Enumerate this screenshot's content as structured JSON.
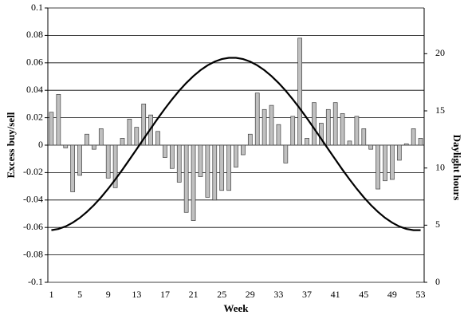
{
  "chart_data": {
    "type": "bar",
    "ylabel": "Excess buy/sell",
    "y2label": "Daylight hours",
    "xlabel": "Week",
    "categories": [
      1,
      null,
      null,
      null,
      5,
      null,
      null,
      null,
      9,
      null,
      null,
      null,
      13,
      null,
      null,
      null,
      17,
      null,
      null,
      null,
      21,
      null,
      null,
      null,
      25,
      null,
      null,
      null,
      29,
      null,
      null,
      null,
      33,
      null,
      null,
      null,
      37,
      null,
      null,
      null,
      41,
      null,
      null,
      null,
      45,
      null,
      null,
      null,
      49,
      null,
      null,
      null,
      53
    ],
    "series": [
      {
        "type": "bar",
        "color": "#c0c0c0",
        "values": [
          0.024,
          0.037,
          -0.002,
          -0.034,
          -0.022,
          0.008,
          -0.003,
          0.012,
          -0.024,
          -0.031,
          0.005,
          0.019,
          0.013,
          0.03,
          0.022,
          0.01,
          -0.009,
          -0.017,
          -0.027,
          -0.049,
          -0.055,
          -0.023,
          -0.038,
          -0.04,
          -0.033,
          -0.033,
          -0.016,
          -0.007,
          0.008,
          0.038,
          0.026,
          0.029,
          0.015,
          -0.013,
          0.021,
          0.078,
          0.005,
          0.031,
          0.016,
          0.026,
          0.031,
          0.023,
          0.003,
          0.021,
          0.012,
          -0.003,
          -0.032,
          -0.026,
          -0.025,
          -0.011,
          0.001,
          0.012,
          0.005
        ]
      },
      {
        "type": "line",
        "axis": "y2",
        "color": "#000000",
        "values": [
          4.56,
          4.67,
          4.89,
          5.22,
          5.64,
          6.16,
          6.76,
          7.44,
          8.19,
          9.0,
          9.85,
          10.74,
          11.64,
          12.56,
          13.46,
          14.35,
          15.2,
          16.01,
          16.76,
          17.44,
          18.04,
          18.56,
          18.98,
          19.31,
          19.53,
          19.64,
          19.64,
          19.53,
          19.31,
          18.98,
          18.56,
          18.04,
          17.44,
          16.76,
          16.01,
          15.2,
          14.35,
          13.46,
          12.56,
          11.64,
          10.74,
          9.85,
          9.0,
          8.19,
          7.44,
          6.76,
          6.16,
          5.64,
          5.22,
          4.89,
          4.67,
          4.56,
          4.56
        ]
      }
    ],
    "ylim": [
      -0.1,
      0.1
    ],
    "yticks": [
      -0.1,
      -0.08,
      -0.06,
      -0.04,
      -0.02,
      0,
      0.02,
      0.04,
      0.06,
      0.08,
      0.1
    ],
    "y2lim": [
      0,
      24
    ],
    "y2ticks": [
      0,
      5,
      10,
      15,
      20
    ],
    "grid": true
  }
}
